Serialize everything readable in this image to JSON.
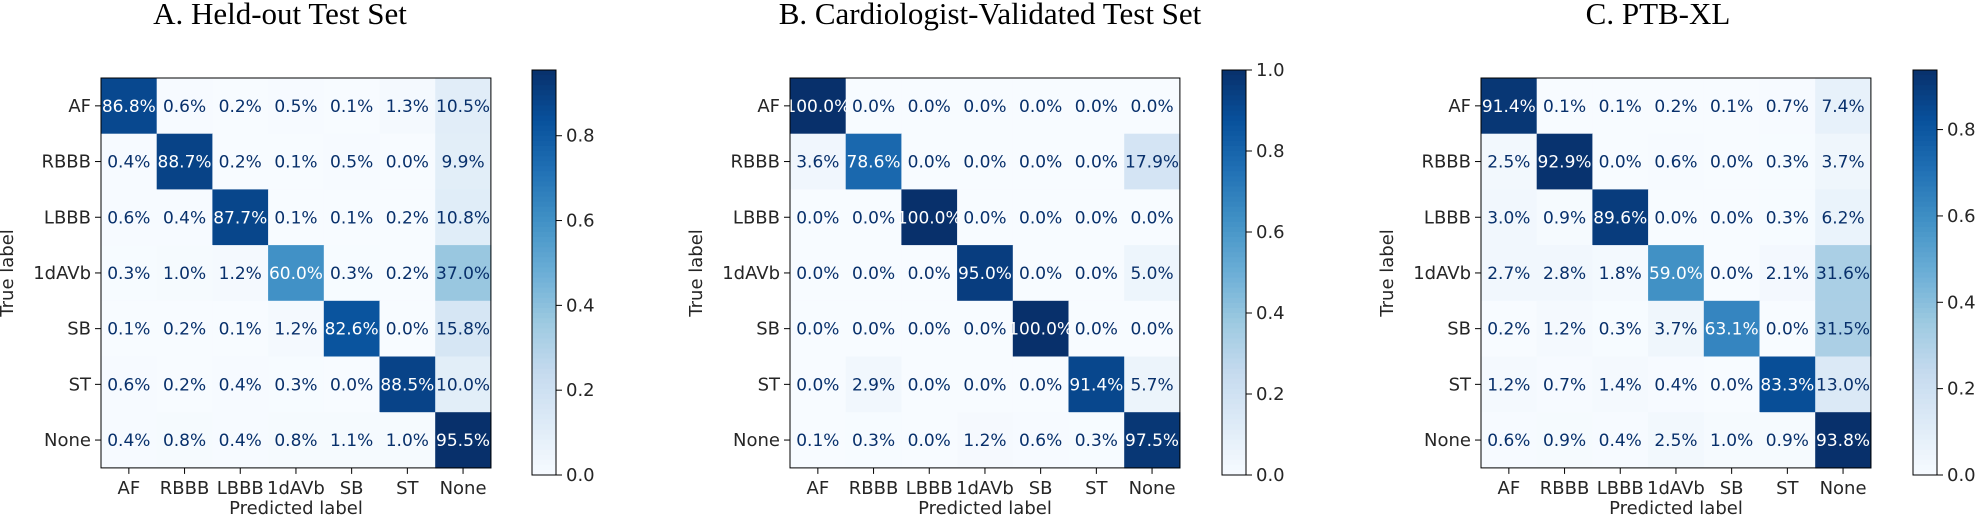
{
  "chart_data": [
    {
      "type": "heatmap",
      "title": "A. Held-out Test Set",
      "xlabel": "Predicted label",
      "ylabel": "True label",
      "classes": [
        "AF",
        "RBBB",
        "LBBB",
        "1dAVb",
        "SB",
        "ST",
        "None"
      ],
      "colormap": "Blues",
      "vmin": 0.0,
      "vmax": 0.955,
      "colorbar_ticks": [
        "0.0",
        "0.2",
        "0.4",
        "0.6",
        "0.8"
      ],
      "matrix": [
        [
          0.868,
          0.006,
          0.002,
          0.005,
          0.001,
          0.013,
          0.105
        ],
        [
          0.004,
          0.887,
          0.002,
          0.001,
          0.005,
          0.0,
          0.099
        ],
        [
          0.006,
          0.004,
          0.877,
          0.001,
          0.001,
          0.002,
          0.108
        ],
        [
          0.003,
          0.01,
          0.012,
          0.6,
          0.003,
          0.002,
          0.37
        ],
        [
          0.001,
          0.002,
          0.001,
          0.012,
          0.826,
          0.0,
          0.158
        ],
        [
          0.006,
          0.002,
          0.004,
          0.003,
          0.0,
          0.885,
          0.1
        ],
        [
          0.004,
          0.008,
          0.004,
          0.008,
          0.011,
          0.01,
          0.955
        ]
      ],
      "labels": [
        [
          "86.8%",
          "0.6%",
          "0.2%",
          "0.5%",
          "0.1%",
          "1.3%",
          "10.5%"
        ],
        [
          "0.4%",
          "88.7%",
          "0.2%",
          "0.1%",
          "0.5%",
          "0.0%",
          "9.9%"
        ],
        [
          "0.6%",
          "0.4%",
          "87.7%",
          "0.1%",
          "0.1%",
          "0.2%",
          "10.8%"
        ],
        [
          "0.3%",
          "1.0%",
          "1.2%",
          "60.0%",
          "0.3%",
          "0.2%",
          "37.0%"
        ],
        [
          "0.1%",
          "0.2%",
          "0.1%",
          "1.2%",
          "82.6%",
          "0.0%",
          "15.8%"
        ],
        [
          "0.6%",
          "0.2%",
          "0.4%",
          "0.3%",
          "0.0%",
          "88.5%",
          "10.0%"
        ],
        [
          "0.4%",
          "0.8%",
          "0.4%",
          "0.8%",
          "1.1%",
          "1.0%",
          "95.5%"
        ]
      ]
    },
    {
      "type": "heatmap",
      "title": "B. Cardiologist-Validated Test Set",
      "xlabel": "Predicted label",
      "ylabel": "True label",
      "classes": [
        "AF",
        "RBBB",
        "LBBB",
        "1dAVb",
        "SB",
        "ST",
        "None"
      ],
      "colormap": "Blues",
      "vmin": 0.0,
      "vmax": 1.0,
      "colorbar_ticks": [
        "0.0",
        "0.2",
        "0.4",
        "0.6",
        "0.8",
        "1.0"
      ],
      "matrix": [
        [
          1.0,
          0.0,
          0.0,
          0.0,
          0.0,
          0.0,
          0.0
        ],
        [
          0.036,
          0.786,
          0.0,
          0.0,
          0.0,
          0.0,
          0.179
        ],
        [
          0.0,
          0.0,
          1.0,
          0.0,
          0.0,
          0.0,
          0.0
        ],
        [
          0.0,
          0.0,
          0.0,
          0.95,
          0.0,
          0.0,
          0.05
        ],
        [
          0.0,
          0.0,
          0.0,
          0.0,
          1.0,
          0.0,
          0.0
        ],
        [
          0.0,
          0.029,
          0.0,
          0.0,
          0.0,
          0.914,
          0.057
        ],
        [
          0.001,
          0.003,
          0.0,
          0.012,
          0.006,
          0.003,
          0.975
        ]
      ],
      "labels": [
        [
          "100.0%",
          "0.0%",
          "0.0%",
          "0.0%",
          "0.0%",
          "0.0%",
          "0.0%"
        ],
        [
          "3.6%",
          "78.6%",
          "0.0%",
          "0.0%",
          "0.0%",
          "0.0%",
          "17.9%"
        ],
        [
          "0.0%",
          "0.0%",
          "100.0%",
          "0.0%",
          "0.0%",
          "0.0%",
          "0.0%"
        ],
        [
          "0.0%",
          "0.0%",
          "0.0%",
          "95.0%",
          "0.0%",
          "0.0%",
          "5.0%"
        ],
        [
          "0.0%",
          "0.0%",
          "0.0%",
          "0.0%",
          "100.0%",
          "0.0%",
          "0.0%"
        ],
        [
          "0.0%",
          "2.9%",
          "0.0%",
          "0.0%",
          "0.0%",
          "91.4%",
          "5.7%"
        ],
        [
          "0.1%",
          "0.3%",
          "0.0%",
          "1.2%",
          "0.6%",
          "0.3%",
          "97.5%"
        ]
      ]
    },
    {
      "type": "heatmap",
      "title": "C. PTB-XL",
      "xlabel": "Predicted label",
      "ylabel": "True label",
      "classes": [
        "AF",
        "RBBB",
        "LBBB",
        "1dAVb",
        "SB",
        "ST",
        "None"
      ],
      "colormap": "Blues",
      "vmin": 0.0,
      "vmax": 0.938,
      "colorbar_ticks": [
        "0.0",
        "0.2",
        "0.4",
        "0.6",
        "0.8"
      ],
      "matrix": [
        [
          0.914,
          0.001,
          0.001,
          0.002,
          0.001,
          0.007,
          0.074
        ],
        [
          0.025,
          0.929,
          0.0,
          0.006,
          0.0,
          0.003,
          0.037
        ],
        [
          0.03,
          0.009,
          0.896,
          0.0,
          0.0,
          0.003,
          0.062
        ],
        [
          0.027,
          0.028,
          0.018,
          0.59,
          0.0,
          0.021,
          0.316
        ],
        [
          0.002,
          0.012,
          0.003,
          0.037,
          0.631,
          0.0,
          0.315
        ],
        [
          0.012,
          0.007,
          0.014,
          0.004,
          0.0,
          0.833,
          0.13
        ],
        [
          0.006,
          0.009,
          0.004,
          0.025,
          0.01,
          0.009,
          0.938
        ]
      ],
      "labels": [
        [
          "91.4%",
          "0.1%",
          "0.1%",
          "0.2%",
          "0.1%",
          "0.7%",
          "7.4%"
        ],
        [
          "2.5%",
          "92.9%",
          "0.0%",
          "0.6%",
          "0.0%",
          "0.3%",
          "3.7%"
        ],
        [
          "3.0%",
          "0.9%",
          "89.6%",
          "0.0%",
          "0.0%",
          "0.3%",
          "6.2%"
        ],
        [
          "2.7%",
          "2.8%",
          "1.8%",
          "59.0%",
          "0.0%",
          "2.1%",
          "31.6%"
        ],
        [
          "0.2%",
          "1.2%",
          "0.3%",
          "3.7%",
          "63.1%",
          "0.0%",
          "31.5%"
        ],
        [
          "1.2%",
          "0.7%",
          "1.4%",
          "0.4%",
          "0.0%",
          "83.3%",
          "13.0%"
        ],
        [
          "0.6%",
          "0.9%",
          "0.4%",
          "2.5%",
          "1.0%",
          "0.9%",
          "93.8%"
        ]
      ]
    }
  ]
}
